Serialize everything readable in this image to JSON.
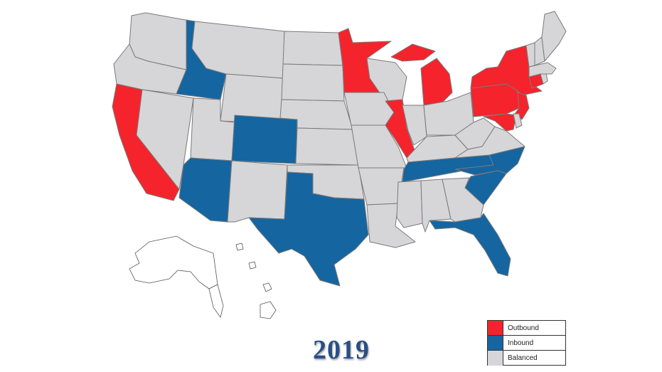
{
  "year": "2019",
  "legend": [
    {
      "label": "Outbound",
      "color": "#f5232c"
    },
    {
      "label": "Inbound",
      "color": "#1565a0"
    },
    {
      "label": "Balanced",
      "color": "#d6d6d8"
    }
  ],
  "states": {
    "CA": "outbound",
    "MN": "outbound",
    "MI": "outbound",
    "IL": "outbound",
    "NY": "outbound",
    "PA": "outbound",
    "NJ": "outbound",
    "MD": "outbound",
    "CT": "outbound",
    "ID": "inbound",
    "CO": "inbound",
    "AZ": "inbound",
    "TX": "inbound",
    "TN": "inbound",
    "NC": "inbound",
    "SC": "inbound",
    "FL": "inbound",
    "WA": "balanced",
    "OR": "balanced",
    "NV": "balanced",
    "MT": "balanced",
    "WY": "balanced",
    "UT": "balanced",
    "NM": "balanced",
    "ND": "balanced",
    "SD": "balanced",
    "NE": "balanced",
    "KS": "balanced",
    "OK": "balanced",
    "IA": "balanced",
    "MO": "balanced",
    "AR": "balanced",
    "LA": "balanced",
    "WI": "balanced",
    "IN": "balanced",
    "OH": "balanced",
    "KY": "balanced",
    "WV": "balanced",
    "VA": "balanced",
    "MS": "balanced",
    "AL": "balanced",
    "GA": "balanced",
    "DE": "balanced",
    "RI": "balanced",
    "MA": "balanced",
    "VT": "balanced",
    "NH": "balanced",
    "ME": "balanced"
  }
}
